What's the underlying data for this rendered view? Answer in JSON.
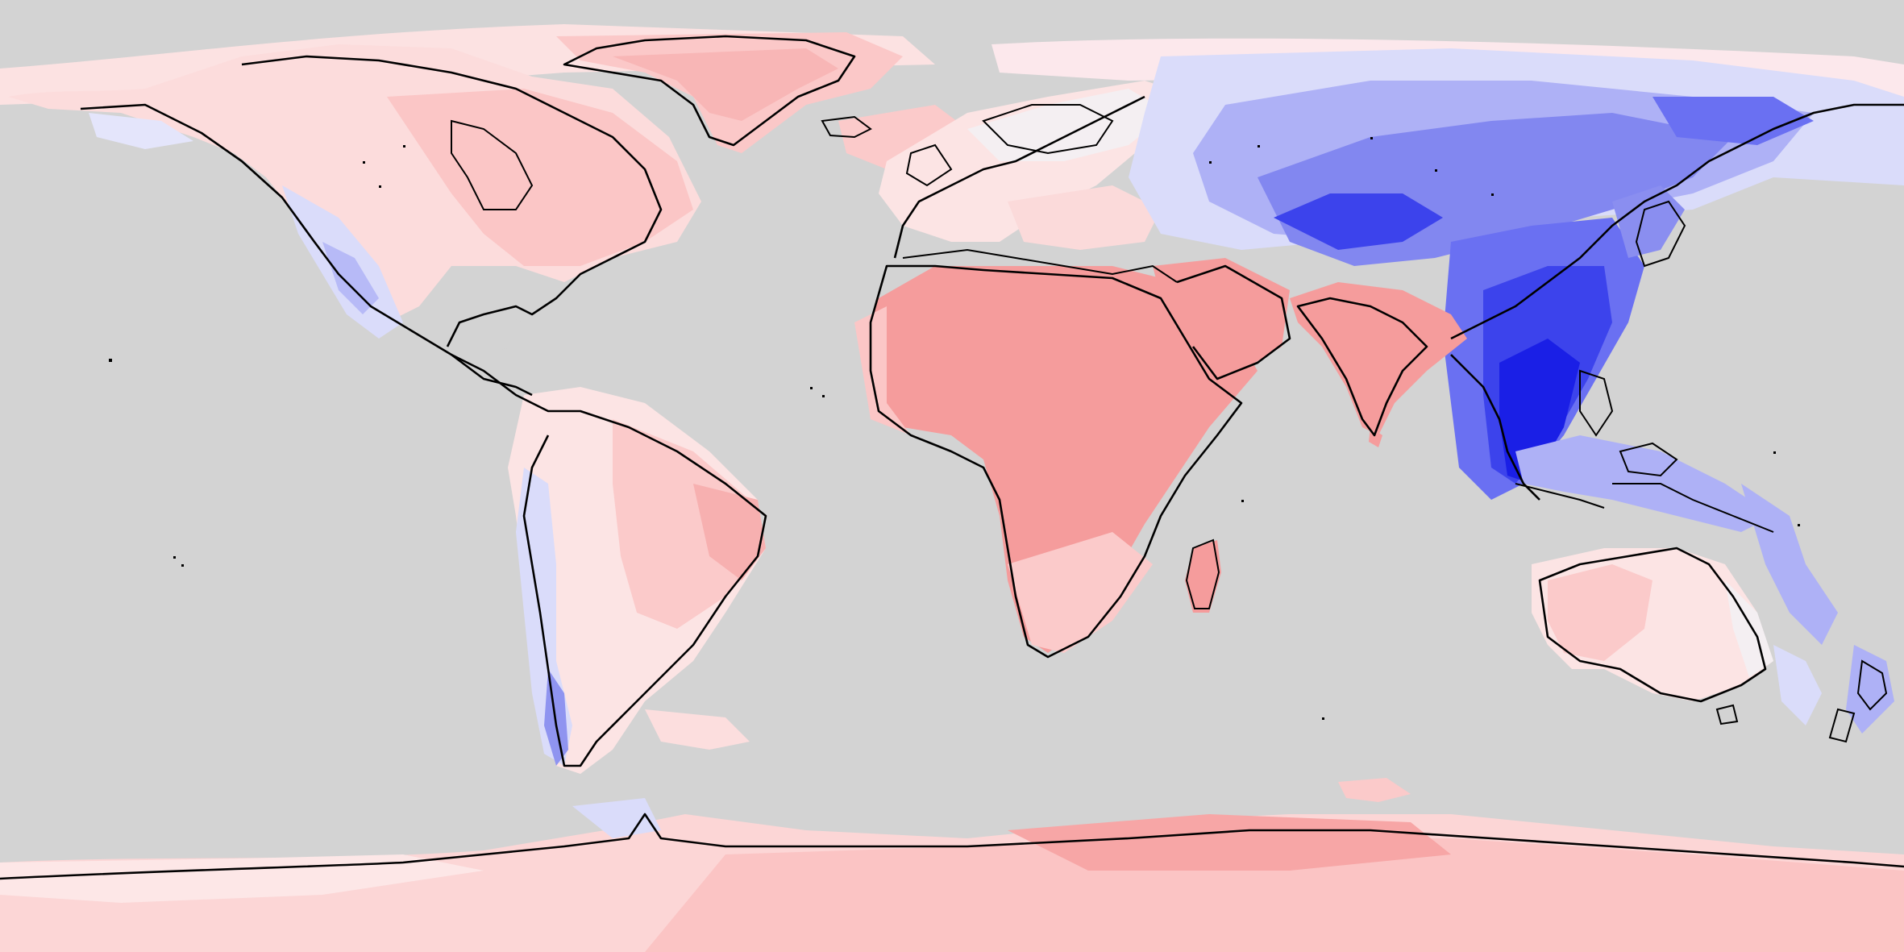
{
  "map": {
    "projection": "equirectangular",
    "background": "ocean-grey",
    "legend": "",
    "title": ""
  },
  "palette": {
    "ocean": "#d3d3d3",
    "blue_darkest": "#1a1fe6",
    "blue_dark": "#3c43ec",
    "blue_mid": "#6a70f2",
    "blue_light": "#aeb1f6",
    "blue_pale": "#dadcfa",
    "white_neutral": "#f4eff2",
    "red_pale": "#fce2e2",
    "red_light": "#fbcaca",
    "red_mid": "#f7b2b2",
    "red_strong": "#f59c9c",
    "coastline": "#000000"
  },
  "regions": [
    {
      "name": "north-america",
      "tone": "red_light"
    },
    {
      "name": "greenland",
      "tone": "red_light"
    },
    {
      "name": "south-america",
      "tone": "red_pale"
    },
    {
      "name": "africa",
      "tone": "red_strong"
    },
    {
      "name": "europe",
      "tone": "red_pale"
    },
    {
      "name": "central-asia",
      "tone": "blue_mid"
    },
    {
      "name": "east-asia",
      "tone": "blue_dark"
    },
    {
      "name": "southeast-asia",
      "tone": "blue_darkest"
    },
    {
      "name": "india",
      "tone": "red_strong"
    },
    {
      "name": "australia",
      "tone": "red_pale"
    },
    {
      "name": "antarctica",
      "tone": "red_light"
    }
  ]
}
